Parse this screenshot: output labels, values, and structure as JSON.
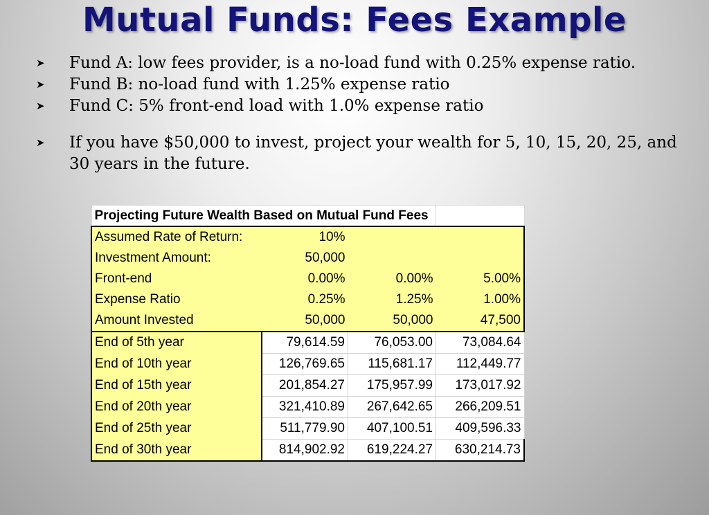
{
  "title": "Mutual Funds: Fees Example",
  "bullets": [
    "Fund A:  low fees provider, is a no-load fund with 0.25% expense ratio.",
    "Fund B:  no-load fund with 1.25% expense ratio",
    "Fund C:  5% front-end load with 1.0% expense ratio",
    "If you have $50,000 to invest, project your wealth for 5, 10, 15, 20, 25, and 30 years in the future."
  ],
  "table": {
    "heading": "Projecting Future Wealth Based on Mutual Fund Fees",
    "assumptions": [
      {
        "label": "Assumed Rate of Return:",
        "a": "10%",
        "b": "",
        "c": ""
      },
      {
        "label": "Investment Amount:",
        "a": "50,000",
        "b": "",
        "c": ""
      },
      {
        "label": "Front-end",
        "a": "0.00%",
        "b": "0.00%",
        "c": "5.00%"
      },
      {
        "label": "Expense Ratio",
        "a": "0.25%",
        "b": "1.25%",
        "c": "1.00%"
      },
      {
        "label": "Amount Invested",
        "a": "50,000",
        "b": "50,000",
        "c": "47,500"
      }
    ],
    "projections": [
      {
        "label": "End of 5th year",
        "a": "79,614.59",
        "b": "76,053.00",
        "c": "73,084.64"
      },
      {
        "label": "End of 10th year",
        "a": "126,769.65",
        "b": "115,681.17",
        "c": "112,449.77"
      },
      {
        "label": "End of 15th year",
        "a": "201,854.27",
        "b": "175,957.99",
        "c": "173,017.92"
      },
      {
        "label": "End of 20th year",
        "a": "321,410.89",
        "b": "267,642.65",
        "c": "266,209.51"
      },
      {
        "label": "End of 25th year",
        "a": "511,779.90",
        "b": "407,100.51",
        "c": "409,596.33"
      },
      {
        "label": "End of 30th year",
        "a": "814,902.92",
        "b": "619,224.27",
        "c": "630,214.73"
      }
    ]
  },
  "colors": {
    "title": "#13137a",
    "highlight": "#ffff99"
  },
  "icons": {
    "bullet": "arrowhead-bullet-icon"
  }
}
